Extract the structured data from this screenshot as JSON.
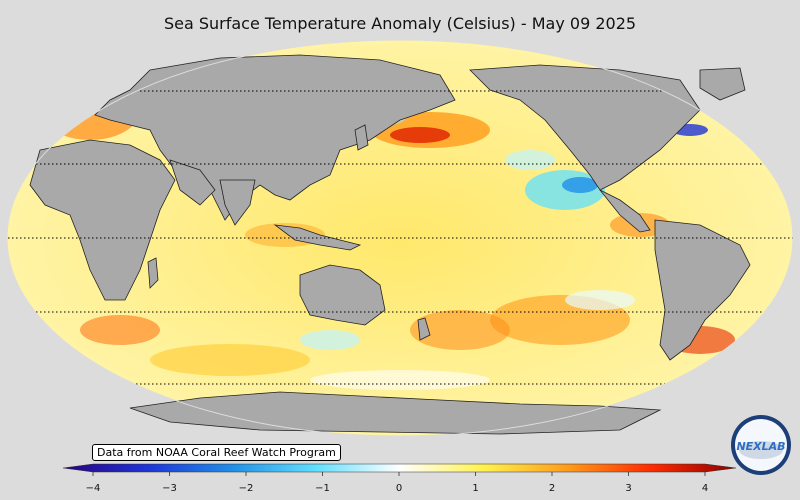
{
  "title": "Sea Surface Temperature Anomaly (Celsius) - May 09 2025",
  "credit": "Data from NOAA Coral Reef Watch Program",
  "logo_text": "NEXLAB",
  "colorbar": {
    "min": -4,
    "max": 4,
    "ticks": [
      "−4",
      "−3",
      "−2",
      "−1",
      "0",
      "1",
      "2",
      "3",
      "4"
    ],
    "tick_values": [
      -4,
      -3,
      -2,
      -1,
      0,
      1,
      2,
      3,
      4
    ],
    "colors": [
      "#2a0080",
      "#1f33d6",
      "#1f8fe8",
      "#5fe0ff",
      "#ffffff",
      "#fff24d",
      "#ff9b1a",
      "#ff2a00",
      "#8a0000"
    ]
  },
  "map": {
    "land_color": "#a9a9a9",
    "background_color": "#dcdcdc",
    "graticule_latitudes": [
      60,
      30,
      0,
      -30,
      -60
    ]
  }
}
